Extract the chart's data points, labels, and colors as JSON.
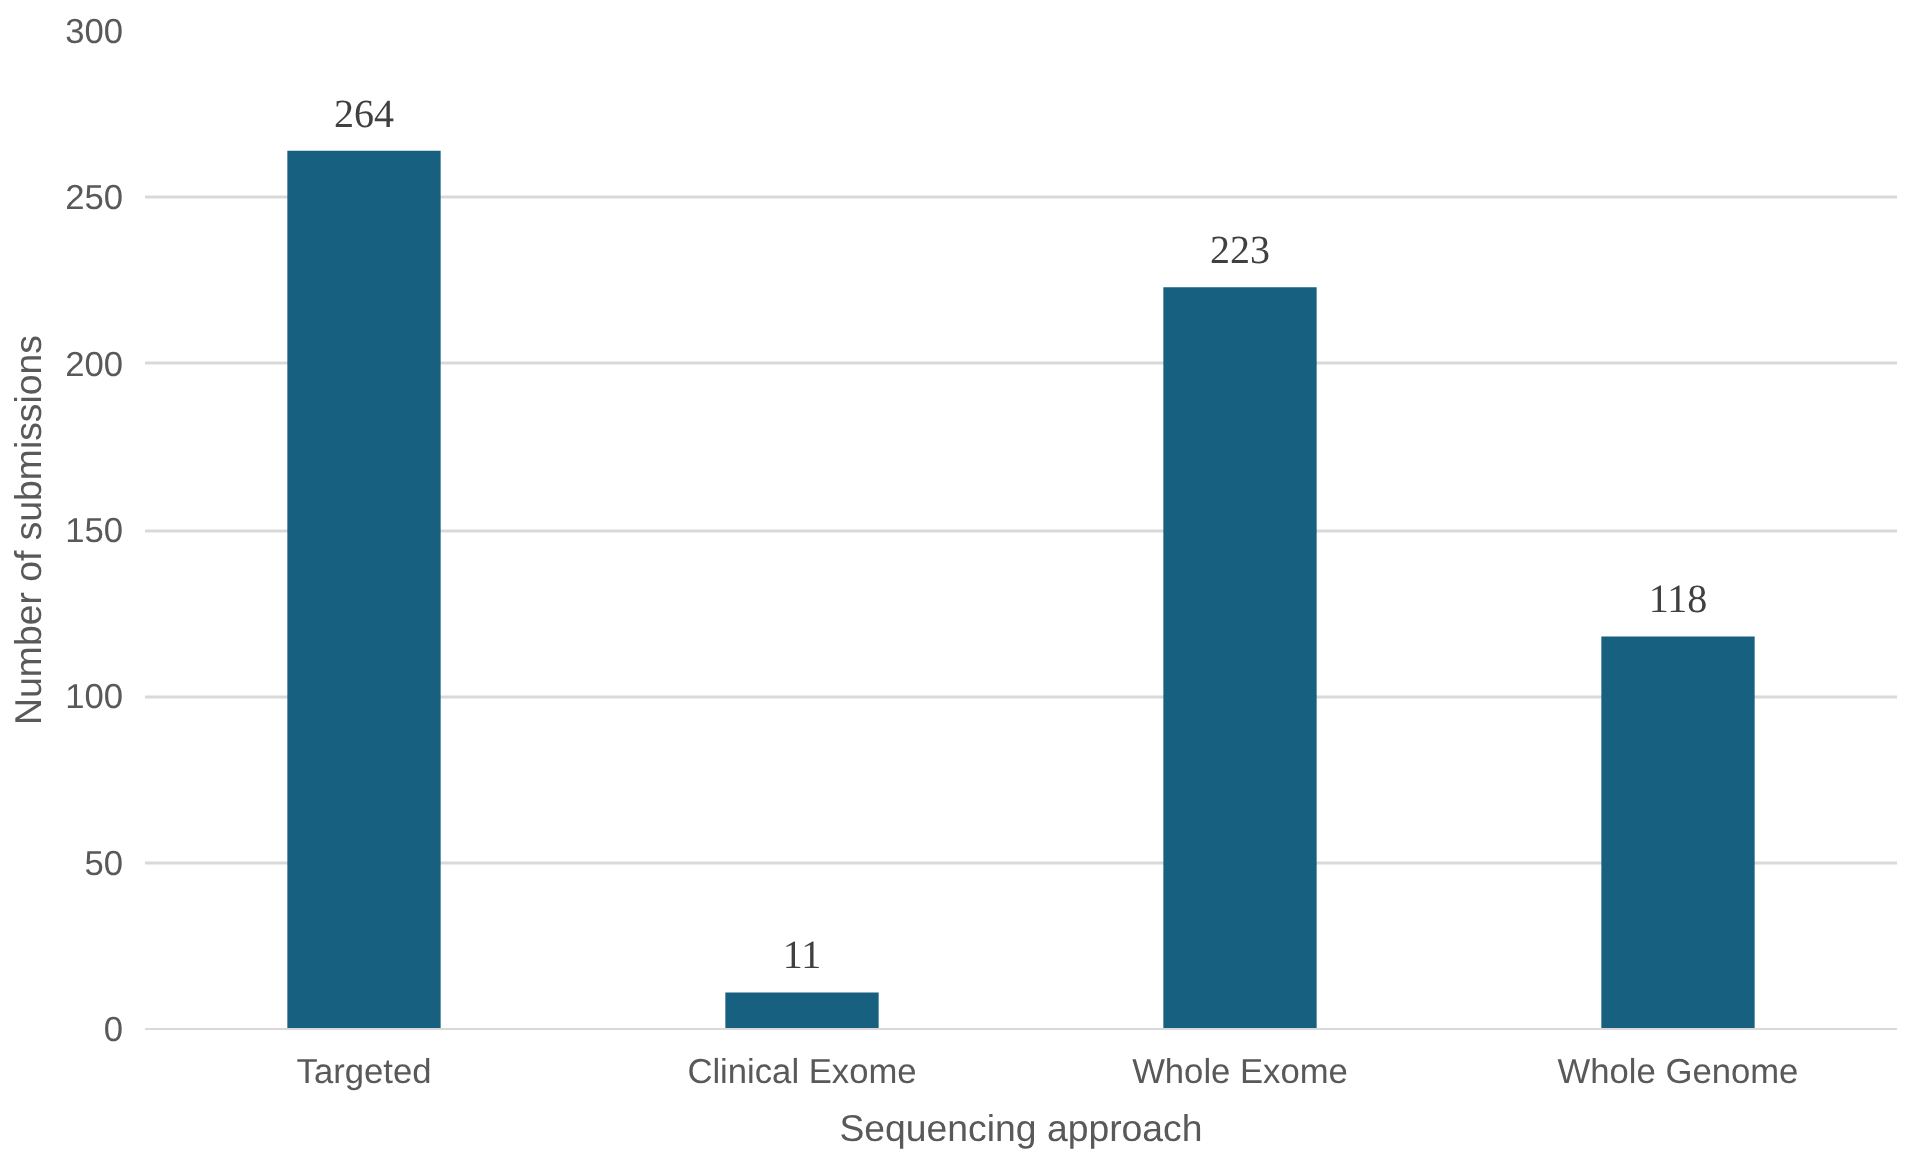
{
  "chart_data": {
    "type": "bar",
    "xlabel": "Sequencing approach",
    "ylabel": "Number of submissions",
    "categories": [
      "Targeted",
      "Clinical Exome",
      "Whole Exome",
      "Whole Genome"
    ],
    "values": [
      264,
      11,
      223,
      118
    ],
    "color": "#17607f",
    "ylim": [
      0,
      300
    ],
    "yticks": [
      0,
      50,
      100,
      150,
      200,
      250,
      300
    ],
    "grid": "y",
    "data_labels": true
  }
}
